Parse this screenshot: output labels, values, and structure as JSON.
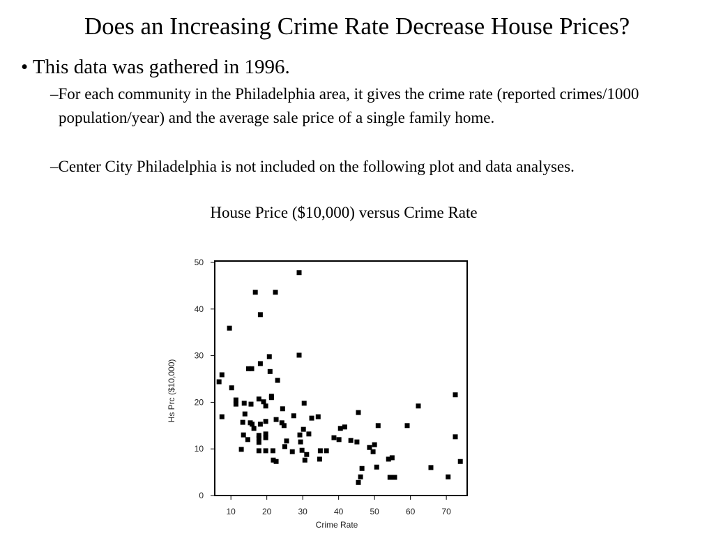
{
  "slide": {
    "title": "Does an Increasing Crime Rate Decrease House Prices?",
    "bullet": "This data was gathered in 1996.",
    "subbullets": [
      "–For each community in the Philadelphia area, it gives the crime rate (reported crimes/1000 population/year) and the average sale price of a single family home.",
      "–Center City Philadelphia is not included on the following plot and data analyses."
    ]
  },
  "chart_data": {
    "type": "scatter",
    "title": "House Price ($10,000) versus Crime Rate",
    "x_label": "Crime Rate",
    "y_label": "Hs Prc ($10,000)",
    "color": "#000000",
    "xlim": [
      5.5,
      75.8
    ],
    "ylim": [
      0,
      50.3
    ],
    "xticks": [
      10,
      20,
      30,
      40,
      50,
      60,
      70
    ],
    "yticks": [
      0,
      10,
      20,
      30,
      40,
      50
    ],
    "x": [
      6.7,
      7.5,
      7.5,
      9.6,
      10.2,
      11.4,
      11.4,
      12.9,
      13.3,
      13.5,
      13.7,
      13.9,
      14.7,
      14.9,
      15.8,
      15.4,
      15.6,
      15.9,
      16.4,
      16.8,
      17.8,
      17.8,
      17.8,
      17.8,
      17.8,
      18.2,
      18.2,
      18.2,
      19.1,
      19.7,
      19.7,
      19.7,
      19.7,
      19.7,
      20.7,
      20.9,
      21.3,
      21.3,
      21.7,
      21.8,
      22.4,
      22.6,
      23.0,
      22.6,
      24.4,
      24.2,
      25.0,
      24.8,
      25.5,
      27.1,
      27.5,
      29.0,
      29.0,
      29.2,
      29.4,
      29.8,
      30.2,
      30.4,
      30.6,
      31.1,
      31.7,
      32.5,
      34.3,
      34.7,
      34.9,
      36.6,
      38.7,
      40.1,
      40.5,
      41.7,
      43.4,
      45.1,
      45.5,
      45.5,
      46.1,
      46.5,
      48.6,
      49.6,
      50.0,
      50.6,
      51.0,
      53.9,
      54.3,
      54.9,
      55.6,
      59.1,
      62.2,
      65.7,
      70.5,
      72.5,
      72.5,
      73.9
    ],
    "values": [
      24.4,
      25.9,
      16.9,
      35.9,
      23.1,
      20.5,
      19.6,
      9.9,
      15.7,
      13.0,
      19.8,
      17.5,
      12.0,
      27.2,
      27.2,
      15.6,
      19.6,
      15.3,
      14.4,
      43.6,
      20.7,
      12.9,
      11.4,
      12.3,
      9.6,
      28.3,
      38.8,
      15.3,
      20.1,
      19.2,
      15.9,
      13.2,
      12.4,
      9.6,
      29.8,
      26.6,
      21.3,
      21.0,
      9.6,
      7.6,
      43.6,
      7.3,
      24.7,
      16.3,
      18.6,
      15.6,
      10.5,
      15.0,
      11.7,
      9.4,
      17.1,
      47.8,
      30.1,
      13.0,
      11.5,
      9.7,
      14.2,
      19.8,
      7.6,
      8.8,
      13.2,
      16.6,
      16.9,
      7.8,
      9.6,
      9.6,
      12.4,
      12.0,
      14.4,
      14.7,
      11.8,
      11.5,
      17.8,
      2.8,
      4.0,
      5.8,
      10.3,
      9.4,
      10.9,
      6.1,
      15.0,
      7.8,
      3.9,
      8.1,
      3.9,
      15.0,
      19.2,
      6.0,
      4.0,
      21.6,
      12.6,
      7.3
    ]
  }
}
